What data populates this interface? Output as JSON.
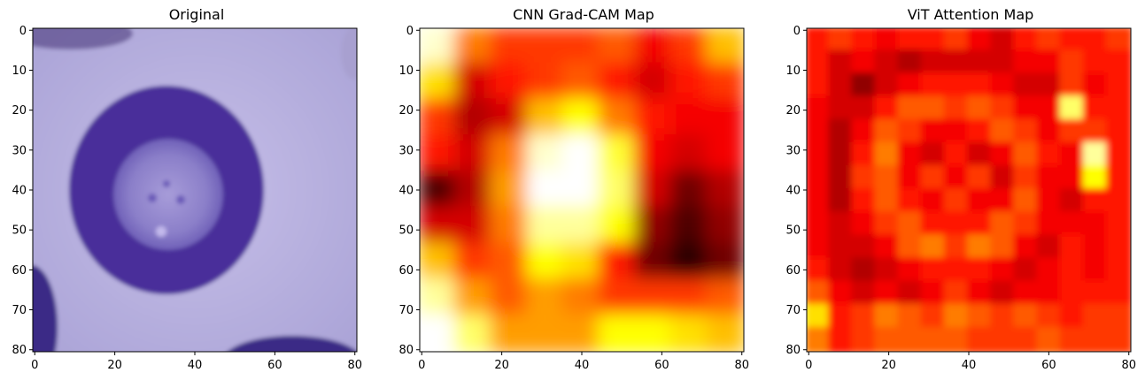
{
  "figure": {
    "panels": [
      {
        "title": "Original"
      },
      {
        "title": "CNN Grad-CAM Map"
      },
      {
        "title": "ViT Attention Map"
      }
    ]
  },
  "chart_data": [
    {
      "type": "heatmap",
      "title": "Original",
      "content": "RGB image of a blood cell (purple ring-shaped cell on light lavender background)",
      "xlim": [
        0,
        81
      ],
      "ylim": [
        81,
        0
      ],
      "xticks": [
        0,
        20,
        40,
        60,
        80
      ],
      "yticks": [
        0,
        10,
        20,
        30,
        40,
        50,
        60,
        70,
        80
      ],
      "colors": {
        "background": "#b9b2e0",
        "cell_ring": "#4a2f9a",
        "cell_center": "#9b8fd2",
        "dark_corners": "#3a2a80"
      }
    },
    {
      "type": "heatmap",
      "title": "CNN Grad-CAM Map",
      "colormap": "hot",
      "xlim": [
        0,
        81
      ],
      "ylim": [
        81,
        0
      ],
      "xticks": [
        0,
        20,
        40,
        60,
        80
      ],
      "yticks": [
        0,
        10,
        20,
        30,
        40,
        50,
        60,
        70,
        80
      ],
      "grid_rows": 9,
      "grid_cols": 9,
      "values": [
        [
          0.95,
          0.55,
          0.45,
          0.45,
          0.45,
          0.5,
          0.35,
          0.45,
          0.65
        ],
        [
          0.7,
          0.3,
          0.4,
          0.45,
          0.5,
          0.4,
          0.3,
          0.4,
          0.45
        ],
        [
          0.45,
          0.25,
          0.3,
          0.65,
          0.75,
          0.55,
          0.4,
          0.35,
          0.35
        ],
        [
          0.4,
          0.3,
          0.55,
          0.95,
          1.0,
          0.8,
          0.35,
          0.3,
          0.35
        ],
        [
          0.1,
          0.25,
          0.6,
          1.0,
          1.0,
          0.85,
          0.3,
          0.15,
          0.25
        ],
        [
          0.3,
          0.3,
          0.55,
          0.9,
          0.9,
          0.75,
          0.2,
          0.1,
          0.2
        ],
        [
          0.65,
          0.45,
          0.5,
          0.75,
          0.7,
          0.4,
          0.15,
          0.05,
          0.15
        ],
        [
          0.9,
          0.6,
          0.5,
          0.6,
          0.55,
          0.45,
          0.45,
          0.45,
          0.5
        ],
        [
          1.0,
          0.85,
          0.6,
          0.6,
          0.6,
          0.75,
          0.75,
          0.7,
          0.65
        ]
      ]
    },
    {
      "type": "heatmap",
      "title": "ViT Attention Map",
      "colormap": "hot",
      "xlim": [
        0,
        81
      ],
      "ylim": [
        81,
        0
      ],
      "xticks": [
        0,
        20,
        40,
        60,
        80
      ],
      "yticks": [
        0,
        10,
        20,
        30,
        40,
        50,
        60,
        70,
        80
      ],
      "grid_rows": 14,
      "grid_cols": 14,
      "values": [
        [
          0.4,
          0.45,
          0.4,
          0.35,
          0.4,
          0.4,
          0.45,
          0.35,
          0.3,
          0.4,
          0.45,
          0.4,
          0.4,
          0.45
        ],
        [
          0.4,
          0.3,
          0.35,
          0.3,
          0.25,
          0.3,
          0.3,
          0.3,
          0.3,
          0.35,
          0.35,
          0.45,
          0.4,
          0.4
        ],
        [
          0.4,
          0.3,
          0.2,
          0.3,
          0.35,
          0.4,
          0.4,
          0.4,
          0.35,
          0.3,
          0.3,
          0.45,
          0.35,
          0.4
        ],
        [
          0.35,
          0.3,
          0.3,
          0.4,
          0.5,
          0.5,
          0.45,
          0.5,
          0.45,
          0.35,
          0.35,
          0.85,
          0.4,
          0.4
        ],
        [
          0.35,
          0.25,
          0.35,
          0.5,
          0.45,
          0.35,
          0.35,
          0.4,
          0.5,
          0.45,
          0.35,
          0.45,
          0.45,
          0.4
        ],
        [
          0.35,
          0.25,
          0.4,
          0.55,
          0.35,
          0.3,
          0.4,
          0.3,
          0.35,
          0.5,
          0.4,
          0.35,
          0.9,
          0.4
        ],
        [
          0.35,
          0.25,
          0.45,
          0.5,
          0.35,
          0.45,
          0.35,
          0.45,
          0.3,
          0.45,
          0.35,
          0.35,
          0.75,
          0.4
        ],
        [
          0.35,
          0.25,
          0.4,
          0.5,
          0.4,
          0.35,
          0.45,
          0.35,
          0.35,
          0.5,
          0.35,
          0.3,
          0.4,
          0.4
        ],
        [
          0.35,
          0.3,
          0.35,
          0.45,
          0.5,
          0.4,
          0.4,
          0.4,
          0.5,
          0.45,
          0.35,
          0.35,
          0.35,
          0.4
        ],
        [
          0.35,
          0.3,
          0.3,
          0.35,
          0.5,
          0.55,
          0.45,
          0.55,
          0.5,
          0.35,
          0.3,
          0.4,
          0.35,
          0.4
        ],
        [
          0.4,
          0.3,
          0.25,
          0.3,
          0.35,
          0.4,
          0.4,
          0.4,
          0.35,
          0.3,
          0.35,
          0.4,
          0.35,
          0.4
        ],
        [
          0.5,
          0.35,
          0.3,
          0.35,
          0.3,
          0.35,
          0.45,
          0.35,
          0.3,
          0.35,
          0.35,
          0.4,
          0.4,
          0.4
        ],
        [
          0.7,
          0.4,
          0.45,
          0.55,
          0.5,
          0.45,
          0.55,
          0.5,
          0.45,
          0.5,
          0.45,
          0.4,
          0.45,
          0.45
        ],
        [
          0.55,
          0.4,
          0.45,
          0.5,
          0.5,
          0.5,
          0.5,
          0.45,
          0.45,
          0.45,
          0.5,
          0.45,
          0.45,
          0.45
        ]
      ]
    }
  ]
}
